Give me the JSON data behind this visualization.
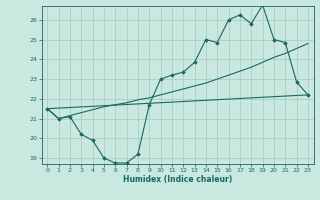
{
  "title": "",
  "xlabel": "Humidex (Indice chaleur)",
  "bg_color": "#c8e8e0",
  "grid_color": "#a8c8c0",
  "line_color": "#1a6860",
  "xlim": [
    -0.5,
    23.5
  ],
  "ylim": [
    18.7,
    26.7
  ],
  "xticks": [
    0,
    1,
    2,
    3,
    4,
    5,
    6,
    7,
    8,
    9,
    10,
    11,
    12,
    13,
    14,
    15,
    16,
    17,
    18,
    19,
    20,
    21,
    22,
    23
  ],
  "yticks": [
    19,
    20,
    21,
    22,
    23,
    24,
    25,
    26
  ],
  "line1_x": [
    0,
    1,
    2,
    3,
    4,
    5,
    6,
    7,
    8,
    9,
    10,
    11,
    12,
    13,
    14,
    15,
    16,
    17,
    18,
    19,
    20,
    21,
    22,
    23
  ],
  "line1_y": [
    21.5,
    21.0,
    21.1,
    20.2,
    19.9,
    19.0,
    18.75,
    18.75,
    19.2,
    21.7,
    23.0,
    23.2,
    23.35,
    23.85,
    25.0,
    24.85,
    26.0,
    26.25,
    25.8,
    26.75,
    25.0,
    24.85,
    22.85,
    22.2
  ],
  "line2_x": [
    0,
    23
  ],
  "line2_y": [
    21.5,
    22.2
  ],
  "line3_x": [
    0,
    1,
    2,
    3,
    4,
    5,
    6,
    7,
    8,
    9,
    10,
    11,
    12,
    13,
    14,
    15,
    16,
    17,
    18,
    19,
    20,
    21,
    22,
    23
  ],
  "line3_y": [
    21.5,
    21.0,
    21.15,
    21.3,
    21.45,
    21.6,
    21.7,
    21.8,
    21.95,
    22.05,
    22.2,
    22.35,
    22.5,
    22.65,
    22.8,
    23.0,
    23.2,
    23.4,
    23.6,
    23.85,
    24.1,
    24.3,
    24.55,
    24.8
  ]
}
